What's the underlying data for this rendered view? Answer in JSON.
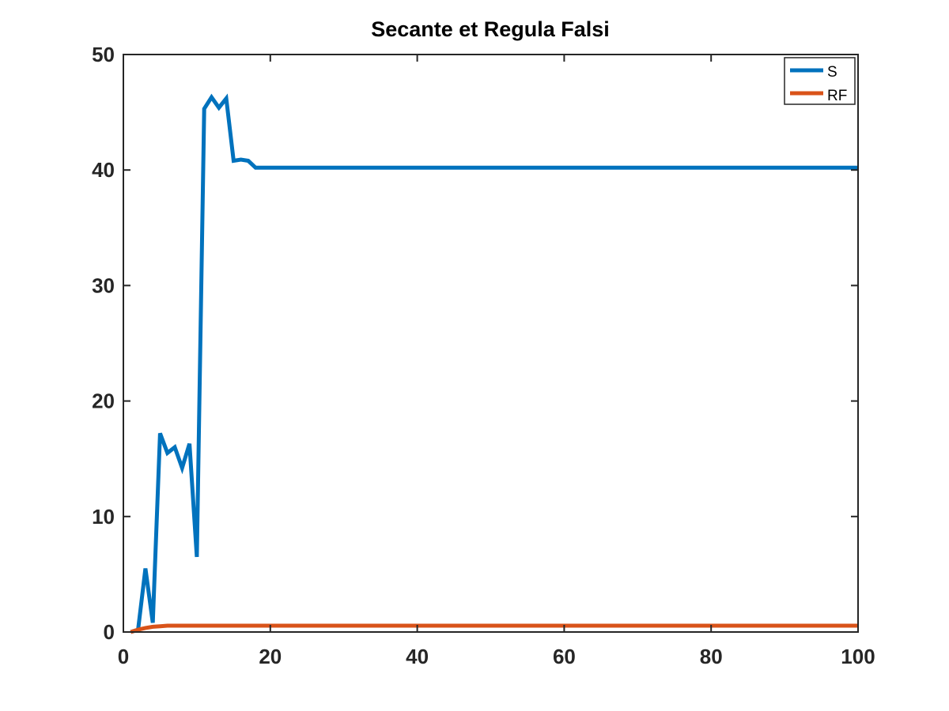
{
  "chart_data": {
    "type": "line",
    "title": "Secante et Regula Falsi",
    "xlabel": "",
    "ylabel": "",
    "xlim": [
      0,
      100
    ],
    "ylim": [
      0,
      50
    ],
    "xticks": [
      0,
      20,
      40,
      60,
      80,
      100
    ],
    "yticks": [
      0,
      10,
      20,
      30,
      40,
      50
    ],
    "grid": false,
    "legend_position": "top-right",
    "series": [
      {
        "name": "S",
        "color": "#0072bd",
        "x": [
          1,
          2,
          3,
          4,
          5,
          6,
          7,
          8,
          9,
          10,
          11,
          12,
          13,
          14,
          15,
          16,
          17,
          18,
          19,
          20,
          100
        ],
        "y": [
          0,
          0.2,
          5.5,
          0.8,
          17.2,
          15.5,
          16.0,
          14.2,
          16.3,
          6.5,
          45.3,
          46.3,
          45.4,
          46.2,
          40.8,
          40.9,
          40.8,
          40.2,
          40.2,
          40.2,
          40.2
        ]
      },
      {
        "name": "RF",
        "color": "#d95319",
        "x": [
          1,
          2,
          3,
          4,
          5,
          6,
          100
        ],
        "y": [
          0,
          0.2,
          0.35,
          0.45,
          0.5,
          0.55,
          0.55
        ]
      }
    ]
  }
}
